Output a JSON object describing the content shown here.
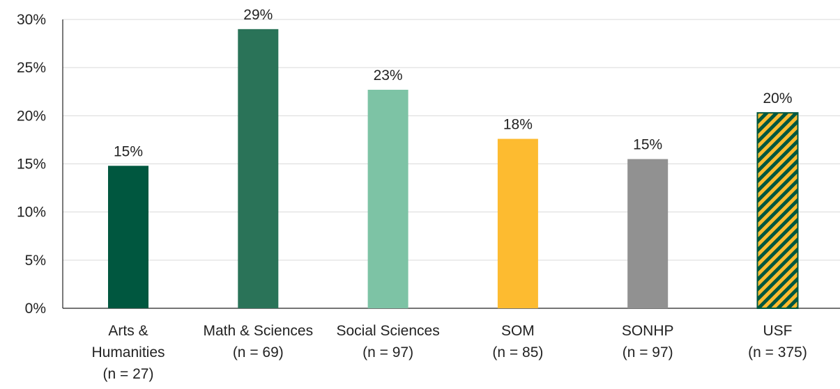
{
  "chart_data": {
    "type": "bar",
    "title": "",
    "xlabel": "",
    "ylabel": "",
    "ylim": [
      0,
      30
    ],
    "yticks": [
      0,
      5,
      10,
      15,
      20,
      25,
      30
    ],
    "ytick_labels": [
      "0%",
      "5%",
      "10%",
      "15%",
      "20%",
      "25%",
      "30%"
    ],
    "grid": true,
    "legend": "none",
    "categories": [
      [
        "Arts &",
        "Humanities",
        "(n = 27)"
      ],
      [
        "Math & Sciences",
        "(n = 69)"
      ],
      [
        "Social Sciences",
        "(n = 97)"
      ],
      [
        "SOM",
        "(n = 85)"
      ],
      [
        "SONHP",
        "(n = 97)"
      ],
      [
        "USF",
        "(n = 375)"
      ]
    ],
    "values": [
      14.8,
      29.0,
      22.7,
      17.6,
      15.5,
      20.3
    ],
    "data_labels": [
      "15%",
      "29%",
      "23%",
      "18%",
      "15%",
      "20%"
    ],
    "colors": [
      "#00573f",
      "#2a7358",
      "#7dc3a5",
      "#fdbb30",
      "#919191",
      "striped-green-gold"
    ],
    "stripe_colors": {
      "a": "#fdbb30",
      "b": "#00573f"
    }
  }
}
